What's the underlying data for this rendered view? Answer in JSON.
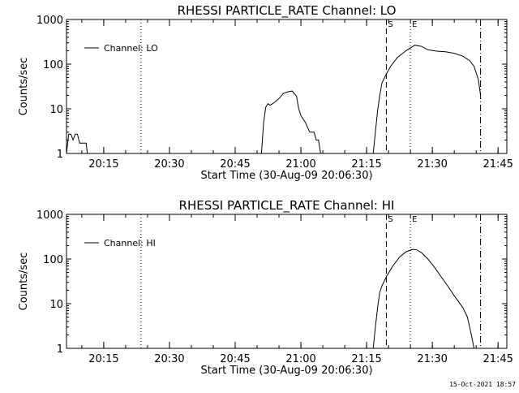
{
  "footer": {
    "timestamp": "15-Oct-2021 18:57"
  },
  "chart_data": [
    {
      "type": "line",
      "title": "RHESSI PARTICLE_RATE Channel: LO",
      "xlabel": "Start Time (30-Aug-09 20:06:30)",
      "ylabel": "Counts/sec",
      "y_scale": "log",
      "ylim": [
        1,
        1000
      ],
      "xlim": [
        "20:06:30",
        "21:47:00"
      ],
      "x_ticks": [
        "20:15",
        "20:30",
        "20:45",
        "21:00",
        "21:15",
        "21:30",
        "21:45"
      ],
      "y_ticks": [
        "1",
        "10",
        "100",
        "1000"
      ],
      "legend": {
        "position": "top-left",
        "label": "Channel: LO"
      },
      "markers": [
        {
          "time": "20:23:30",
          "style": "dotted",
          "label": ""
        },
        {
          "time": "21:19:30",
          "style": "dashed",
          "label": "S"
        },
        {
          "time": "21:25:00",
          "style": "dotted",
          "label": "E"
        },
        {
          "time": "21:41:00",
          "style": "dash-dot",
          "label": ""
        }
      ],
      "series": [
        {
          "name": "Channel: LO",
          "x": [
            "20:06:30",
            "20:07:00",
            "20:07:30",
            "20:08:00",
            "20:08:30",
            "20:09:00",
            "20:09:30",
            "20:10:00",
            "20:11:00",
            "20:11:15",
            "20:51:00",
            "20:51:30",
            "20:52:00",
            "20:52:30",
            "20:53:00",
            "20:54:00",
            "20:55:00",
            "20:56:00",
            "20:57:00",
            "20:58:00",
            "20:59:00",
            "20:59:30",
            "21:00:00",
            "21:01:00",
            "21:02:00",
            "21:03:00",
            "21:03:30",
            "21:04:00",
            "21:04:30",
            "21:16:30",
            "21:17:00",
            "21:17:30",
            "21:18:00",
            "21:18:30",
            "21:19:30",
            "21:20:30",
            "21:22:00",
            "21:24:00",
            "21:26:00",
            "21:27:30",
            "21:29:00",
            "21:31:00",
            "21:33:00",
            "21:35:00",
            "21:37:00",
            "21:38:30",
            "21:39:30",
            "21:40:30",
            "21:41:00"
          ],
          "y": [
            1,
            2.7,
            2.7,
            2,
            2.7,
            2.7,
            1.7,
            1.7,
            1.7,
            1,
            1,
            5,
            11,
            13,
            12,
            14,
            17,
            22,
            24,
            25,
            19,
            10,
            7,
            5,
            3,
            3,
            2,
            2,
            1,
            1,
            3,
            9,
            20,
            38,
            60,
            90,
            140,
            200,
            265,
            250,
            210,
            195,
            190,
            175,
            150,
            120,
            90,
            45,
            20
          ]
        }
      ]
    },
    {
      "type": "line",
      "title": "RHESSI PARTICLE_RATE Channel: HI",
      "xlabel": "Start Time (30-Aug-09 20:06:30)",
      "ylabel": "Counts/sec",
      "y_scale": "log",
      "ylim": [
        1,
        1000
      ],
      "xlim": [
        "20:06:30",
        "21:47:00"
      ],
      "x_ticks": [
        "20:15",
        "20:30",
        "20:45",
        "21:00",
        "21:15",
        "21:30",
        "21:45"
      ],
      "y_ticks": [
        "1",
        "10",
        "100",
        "1000"
      ],
      "legend": {
        "position": "top-left",
        "label": "Channel: HI"
      },
      "markers": [
        {
          "time": "20:23:30",
          "style": "dotted",
          "label": ""
        },
        {
          "time": "21:19:30",
          "style": "dashed",
          "label": "S"
        },
        {
          "time": "21:25:00",
          "style": "dotted",
          "label": "E"
        },
        {
          "time": "21:41:00",
          "style": "dash-dot",
          "label": ""
        }
      ],
      "series": [
        {
          "name": "Channel: HI",
          "x": [
            "21:16:30",
            "21:17:00",
            "21:17:30",
            "21:18:00",
            "21:18:30",
            "21:19:30",
            "21:21:00",
            "21:22:30",
            "21:24:00",
            "21:25:30",
            "21:26:30",
            "21:27:30",
            "21:29:00",
            "21:30:30",
            "21:32:00",
            "21:33:30",
            "21:35:00",
            "21:36:00",
            "21:37:00",
            "21:38:00",
            "21:38:30",
            "21:39:00",
            "21:39:30"
          ],
          "y": [
            1,
            3,
            8,
            18,
            25,
            40,
            70,
            110,
            145,
            165,
            160,
            140,
            100,
            65,
            40,
            25,
            15,
            11,
            8,
            5,
            3,
            1.8,
            1
          ]
        }
      ]
    }
  ]
}
